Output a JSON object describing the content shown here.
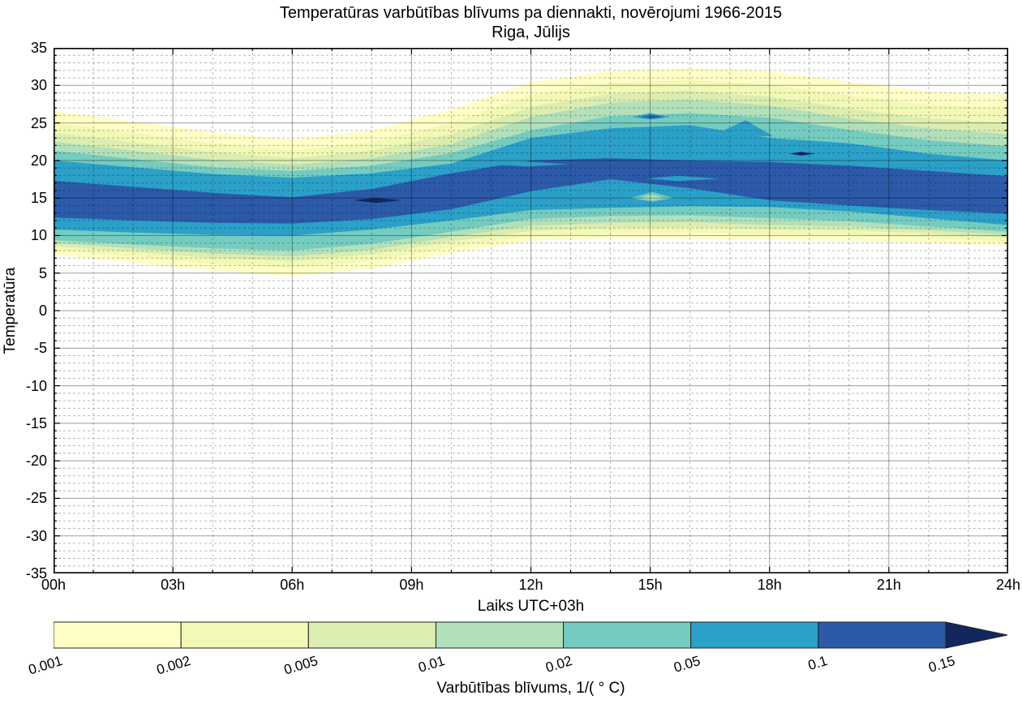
{
  "title": {
    "line1": "Temperatūras varbūtības blīvums pa diennakti, novērojumi 1966-2015",
    "line2": "Riga, Jūlijs"
  },
  "axes": {
    "y_label": "Temperatūra",
    "x_label": "Laiks UTC+03h",
    "y_ticks": [
      35,
      30,
      25,
      20,
      15,
      10,
      5,
      0,
      -5,
      -10,
      -15,
      -20,
      -25,
      -30,
      -35
    ],
    "x_tick_labels": [
      "00h",
      "03h",
      "06h",
      "09h",
      "12h",
      "15h",
      "18h",
      "21h",
      "24h"
    ],
    "x_tick_hours": [
      0,
      3,
      6,
      9,
      12,
      15,
      18,
      21,
      24
    ],
    "y_range": [
      -35,
      35
    ],
    "x_range_hours": [
      0,
      24
    ],
    "y_minor_step": 1,
    "x_minor_step_hours": 1,
    "grid": "on"
  },
  "colorbar": {
    "label": "Varbūtības blīvums, 1/( ° C)",
    "tick_labels": [
      "0.001",
      "0.002",
      "0.005",
      "0.01",
      "0.02",
      "0.05",
      "0.1",
      "0.15"
    ],
    "segment_colors": [
      "#FEFEC6",
      "#F2F8B5",
      "#DCEDB1",
      "#B2E0BA",
      "#74CCC1",
      "#2BA0C8",
      "#2C5AA8"
    ],
    "arrow_color": "#12275E"
  },
  "chart_data": {
    "type": "heatmap",
    "subtype": "filled-contour",
    "title": "Temperatūras varbūtības blīvums pa diennakti, novērojumi 1966-2015 — Riga, Jūlijs",
    "xlabel": "Laiks UTC+03h",
    "ylabel": "Temperatūra",
    "xlim_hours": [
      0,
      24
    ],
    "ylim_degC": [
      -35,
      35
    ],
    "levels_density": [
      0.001,
      0.002,
      0.005,
      0.01,
      0.02,
      0.05,
      0.1,
      0.15
    ],
    "hours": [
      0,
      2,
      4,
      6,
      8,
      10,
      12,
      14,
      16,
      18,
      20,
      22,
      24
    ],
    "bands": [
      {
        "level": 0.001,
        "color": "#FEFEC6",
        "upper": [
          26.6,
          25.2,
          23.8,
          22.8,
          24.0,
          26.8,
          30.4,
          31.9,
          32.3,
          31.9,
          30.5,
          29.2,
          28.8
        ],
        "lower": [
          7.4,
          6.4,
          5.3,
          4.6,
          5.6,
          7.6,
          9.3,
          9.6,
          9.6,
          9.4,
          9.3,
          9.0,
          8.6
        ]
      },
      {
        "level": 0.002,
        "color": "#F2F8B5",
        "upper": [
          25.0,
          23.7,
          22.3,
          21.3,
          22.4,
          25.0,
          28.7,
          30.3,
          30.7,
          30.1,
          28.7,
          27.4,
          27.0
        ],
        "lower": [
          8.1,
          7.2,
          6.2,
          5.7,
          6.6,
          8.4,
          9.9,
          10.3,
          10.4,
          10.2,
          10.1,
          9.7,
          9.2
        ]
      },
      {
        "level": 0.005,
        "color": "#DCEDB1",
        "upper": [
          23.7,
          22.4,
          21.1,
          20.3,
          21.3,
          23.5,
          27.1,
          28.9,
          29.3,
          28.5,
          26.9,
          25.6,
          25.0
        ],
        "lower": [
          8.6,
          7.8,
          7.0,
          6.6,
          7.5,
          9.2,
          10.6,
          11.0,
          11.1,
          10.8,
          10.7,
          10.3,
          9.7
        ]
      },
      {
        "level": 0.01,
        "color": "#B2E0BA",
        "upper": [
          22.5,
          21.3,
          20.1,
          19.4,
          20.3,
          22.2,
          25.8,
          27.7,
          28.1,
          27.3,
          25.6,
          24.3,
          23.5
        ],
        "lower": [
          9.0,
          8.3,
          7.6,
          7.2,
          8.1,
          9.8,
          11.3,
          11.7,
          11.8,
          11.4,
          11.2,
          10.7,
          10.1
        ]
      },
      {
        "level": 0.02,
        "color": "#74CCC1",
        "upper": [
          21.3,
          20.2,
          19.1,
          18.6,
          19.3,
          21.0,
          24.0,
          25.9,
          26.3,
          25.7,
          24.1,
          22.7,
          21.9
        ],
        "lower": [
          9.4,
          8.8,
          8.3,
          8.0,
          8.9,
          10.5,
          12.2,
          12.6,
          12.7,
          12.3,
          11.9,
          11.2,
          10.5
        ]
      },
      {
        "level": 0.05,
        "color": "#2BA0C8",
        "upper": [
          20.0,
          19.1,
          18.2,
          17.7,
          18.3,
          19.6,
          23.0,
          24.3,
          24.7,
          23.0,
          22.3,
          20.9,
          20.0
        ],
        "lower": [
          10.8,
          10.4,
          10.1,
          10.0,
          10.8,
          12.0,
          13.4,
          13.7,
          13.9,
          13.8,
          13.2,
          12.3,
          11.4
        ]
      },
      {
        "level": 0.1,
        "color": "#2C5AA8",
        "upper": [
          17.3,
          16.5,
          15.7,
          15.1,
          16.2,
          18.3,
          20.0,
          20.3,
          20.0,
          19.8,
          19.3,
          18.6,
          17.9
        ],
        "lower": [
          12.4,
          12.0,
          11.7,
          11.6,
          12.2,
          13.5,
          15.9,
          17.5,
          16.3,
          14.7,
          14.0,
          13.4,
          12.9
        ]
      }
    ],
    "features": [
      {
        "name": "density-max-blob-08h",
        "level": 0.15,
        "color": "#12275E",
        "points": [
          [
            7.55,
            14.7
          ],
          [
            8.1,
            15.05
          ],
          [
            8.75,
            14.7
          ],
          [
            8.1,
            14.35
          ]
        ]
      },
      {
        "name": "density-max-dot-19h",
        "level": 0.15,
        "color": "#12275E",
        "points": [
          [
            18.5,
            20.9
          ],
          [
            18.8,
            21.15
          ],
          [
            19.15,
            20.9
          ],
          [
            18.8,
            20.65
          ]
        ]
      },
      {
        "name": "cyan-spike-1730",
        "level": 0.05,
        "color": "#2BA0C8",
        "points": [
          [
            16.6,
            23.4
          ],
          [
            17.4,
            25.35
          ],
          [
            18.1,
            23.2
          ]
        ]
      },
      {
        "name": "cyan-wedge-12h",
        "level": 0.05,
        "color": "#2BA0C8",
        "points": [
          [
            10.85,
            19.5
          ],
          [
            11.9,
            19.85
          ],
          [
            12.95,
            19.5
          ],
          [
            11.9,
            19.2
          ]
        ]
      },
      {
        "name": "cyan-lens-16h",
        "level": 0.05,
        "color": "#2BA0C8",
        "points": [
          [
            14.9,
            17.6
          ],
          [
            15.7,
            17.95
          ],
          [
            16.75,
            17.55
          ],
          [
            15.7,
            17.25
          ]
        ]
      },
      {
        "name": "teal-dip-blob-15h",
        "level": 0.02,
        "color": "#74CCC1",
        "points": [
          [
            14.5,
            15.0
          ],
          [
            15.05,
            15.8
          ],
          [
            15.6,
            15.0
          ],
          [
            15.05,
            14.5
          ]
        ]
      },
      {
        "name": "green-dip-core-15h",
        "level": 0.01,
        "color": "#B2E0BA",
        "points": [
          [
            14.75,
            15.0
          ],
          [
            15.05,
            15.45
          ],
          [
            15.35,
            15.0
          ],
          [
            15.05,
            14.75
          ]
        ]
      },
      {
        "name": "cyan-bump-15h",
        "level": 0.05,
        "color": "#2BA0C8",
        "points": [
          [
            14.55,
            25.8
          ],
          [
            15.0,
            26.3
          ],
          [
            15.5,
            25.8
          ],
          [
            15.0,
            25.45
          ]
        ]
      },
      {
        "name": "royal-dash-15h",
        "level": 0.1,
        "color": "#2C5AA8",
        "points": [
          [
            14.75,
            25.8
          ],
          [
            15.05,
            26.0
          ],
          [
            15.35,
            25.8
          ],
          [
            15.05,
            25.6
          ]
        ]
      }
    ],
    "legend_position": "bottom-colorbar",
    "colorbar_units": "1/( ° C)"
  },
  "style_colors": {
    "background": "#FFFFFF",
    "axis": "#000000",
    "major_grid": "rgba(0,0,0,0.38)",
    "minor_grid": "rgba(0,0,0,0.28)"
  }
}
